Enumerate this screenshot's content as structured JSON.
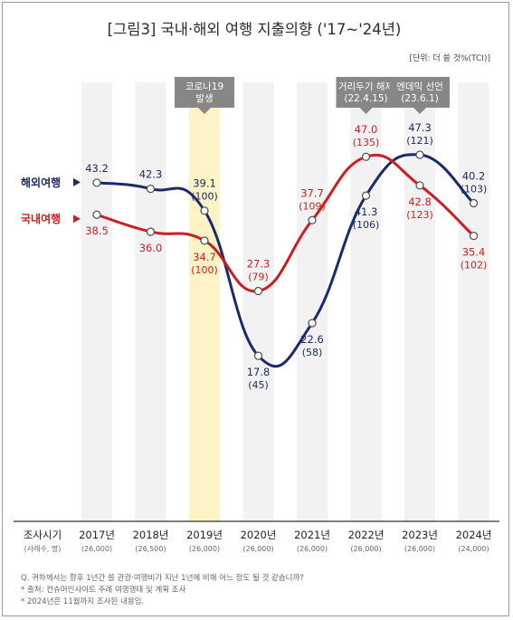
{
  "chart_data": {
    "type": "line",
    "title": "[그림3] 국내·해외 여행 지출의향 ('17~'24년)",
    "unit": "[단위: 더 쓸 것%(TCI)]",
    "axis_label": "조사시기",
    "axis_sublabel": "(사례수, 명)",
    "categories": [
      "2017년",
      "2018년",
      "2019년",
      "2020년",
      "2021년",
      "2022년",
      "2023년",
      "2024년"
    ],
    "sample_sizes": [
      "(26,000)",
      "(26,500)",
      "(26,000)",
      "(26,000)",
      "(26,000)",
      "(26,000)",
      "(26,000)",
      "(24,000)"
    ],
    "series": [
      {
        "name": "해외여행",
        "color": "#1b2a6b",
        "values": [
          43.2,
          42.3,
          39.1,
          17.8,
          22.6,
          41.3,
          47.3,
          40.2
        ],
        "tci": [
          "",
          "",
          "(100)",
          "(45)",
          "(58)",
          "(106)",
          "(121)",
          "(103)"
        ]
      },
      {
        "name": "국내여행",
        "color": "#cc1e1e",
        "values": [
          38.5,
          36.0,
          34.7,
          27.3,
          37.7,
          47.0,
          42.8,
          35.4
        ],
        "tci": [
          "",
          "",
          "(100)",
          "(79)",
          "(109)",
          "(135)",
          "(123)",
          "(102)"
        ]
      }
    ],
    "events": [
      {
        "lines": [
          "코로나19",
          "발생"
        ],
        "category_index": 2
      },
      {
        "lines": [
          "거리두기 해제",
          "(22.4.15)"
        ],
        "category_index": 5
      },
      {
        "lines": [
          "엔데믹 선언",
          "(23.6.1)"
        ],
        "category_index": 6
      }
    ],
    "highlight_category_index": 2,
    "ylim": [
      10,
      55
    ],
    "grid": false,
    "notes": [
      "Q. 귀하께서는 향후 1년간 쓸 관광·여행비가 지난 1년에 비해 어느 정도 될 것 같습니까?",
      "* 출처: 컨슈머인사이트 주례 여행행태 및 계획 조사",
      "* 2024년은 11월까지 조사된 내용임."
    ]
  }
}
